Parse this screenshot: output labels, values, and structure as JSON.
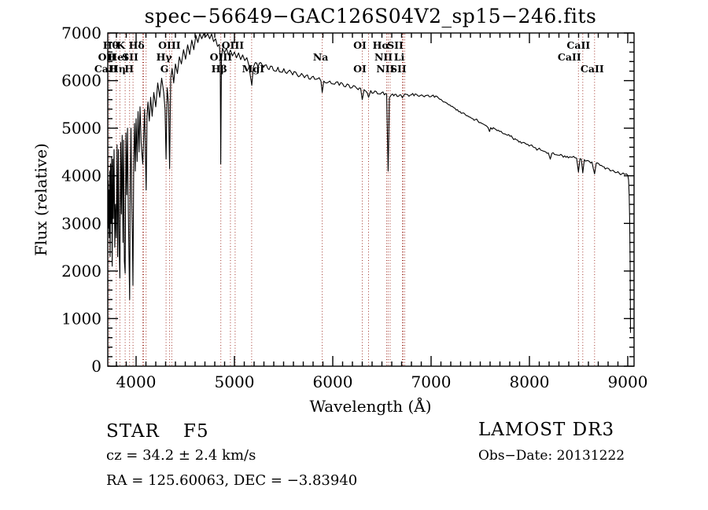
{
  "title": "spec−56649−GAC126S04V2_sp15−246.fits",
  "footer": {
    "class_type": "STAR",
    "subclass": "F5",
    "cz": "cz = 34.2 ± 2.4 km/s",
    "radec": "RA = 125.60063, DEC =  −3.83940",
    "survey": "LAMOST DR3",
    "obs_date": "Obs−Date: 20131222"
  },
  "chart_data": {
    "type": "line",
    "title": "spec−56649−GAC126S04V2_sp15−246.fits",
    "xlabel": "Wavelength (Å)",
    "ylabel": "Flux (relative)",
    "xlim": [
      3712,
      9064
    ],
    "ylim": [
      0,
      7000
    ],
    "x_ticks": [
      4000,
      5000,
      6000,
      7000,
      8000,
      9000
    ],
    "y_ticks": [
      0,
      1000,
      2000,
      3000,
      4000,
      5000,
      6000,
      7000
    ],
    "x_minor_step": 100,
    "y_minor_step": 200,
    "grid": false,
    "line_color": "#000000",
    "marked_line_color": "#a13228",
    "marked_lines": [
      3727,
      3798,
      3835,
      3889,
      3933.7,
      3968.5,
      4068,
      4076,
      4101.7,
      4305,
      4340.5,
      4363,
      4861.3,
      4958.9,
      5006.8,
      5175,
      5893,
      6300,
      6363.8,
      6548,
      6562.8,
      6583,
      6707.8,
      6716.4,
      6730.8,
      8498,
      8542,
      8662
    ],
    "line_labels": [
      {
        "text": "Hθ",
        "wavelength": 3798,
        "row": 0,
        "dx": -7
      },
      {
        "text": "K",
        "wavelength": 3933.7,
        "row": 0,
        "dx": -11
      },
      {
        "text": "Hδ",
        "wavelength": 4101.7,
        "row": 0,
        "dx": -12
      },
      {
        "text": "OIII",
        "wavelength": 4363,
        "row": 0,
        "dx": -3
      },
      {
        "text": "OIII",
        "wavelength": 5006.8,
        "row": 0,
        "dx": -3
      },
      {
        "text": "OI",
        "wavelength": 6300,
        "row": 0,
        "dx": -3
      },
      {
        "text": "Hα",
        "wavelength": 6562.8,
        "row": 0,
        "dx": -9
      },
      {
        "text": "SII",
        "wavelength": 6716.4,
        "row": 0,
        "dx": -10
      },
      {
        "text": "CaII",
        "wavelength": 8498,
        "row": 0,
        "dx": 0
      },
      {
        "text": "OII",
        "wavelength": 3727,
        "row": 1,
        "dx": -3
      },
      {
        "text": "HeI",
        "wavelength": 3889,
        "row": 1,
        "dx": -9
      },
      {
        "text": "SII",
        "wavelength": 4068,
        "row": 1,
        "dx": -16
      },
      {
        "text": "Hγ",
        "wavelength": 4340.5,
        "row": 1,
        "dx": -7
      },
      {
        "text": "OIII",
        "wavelength": 4958.9,
        "row": 1,
        "dx": -12
      },
      {
        "text": "Na",
        "wavelength": 5893,
        "row": 1,
        "dx": -2
      },
      {
        "text": "NII",
        "wavelength": 6548,
        "row": 1,
        "dx": -4
      },
      {
        "text": "Li",
        "wavelength": 6707.8,
        "row": 1,
        "dx": -4
      },
      {
        "text": "CaII",
        "wavelength": 8542,
        "row": 1,
        "dx": -17
      },
      {
        "text": "CaII",
        "wavelength": 3933.7,
        "row": 2,
        "dx": -30
      },
      {
        "text": "Hη",
        "wavelength": 3835,
        "row": 2,
        "dx": -3
      },
      {
        "text": "H",
        "wavelength": 3968.5,
        "row": 2,
        "dx": -5
      },
      {
        "text": "G",
        "wavelength": 4305,
        "row": 2,
        "dx": -2
      },
      {
        "text": "Hβ",
        "wavelength": 4861.3,
        "row": 2,
        "dx": -2
      },
      {
        "text": "MgI",
        "wavelength": 5175,
        "row": 2,
        "dx": 2
      },
      {
        "text": "OI",
        "wavelength": 6363.8,
        "row": 2,
        "dx": -11
      },
      {
        "text": "NII",
        "wavelength": 6583,
        "row": 2,
        "dx": -6
      },
      {
        "text": "SII",
        "wavelength": 6730.8,
        "row": 2,
        "dx": -8
      },
      {
        "text": "CaII",
        "wavelength": 8662,
        "row": 2,
        "dx": -3
      }
    ],
    "noise_regions": [
      {
        "from": 3712,
        "to": 4400,
        "amp": 150
      },
      {
        "from": 4400,
        "to": 5000,
        "amp": 90
      },
      {
        "from": 5000,
        "to": 5900,
        "amp": 45
      },
      {
        "from": 5900,
        "to": 6900,
        "amp": 40
      },
      {
        "from": 6900,
        "to": 8000,
        "amp": 30
      },
      {
        "from": 8000,
        "to": 9030,
        "amp": 35
      }
    ],
    "spectrum": [
      [
        3712,
        3000
      ],
      [
        3716,
        3900
      ],
      [
        3720,
        2900
      ],
      [
        3724,
        3700
      ],
      [
        3727,
        2700
      ],
      [
        3731,
        4100
      ],
      [
        3736,
        2300
      ],
      [
        3741,
        4250
      ],
      [
        3746,
        3000
      ],
      [
        3751,
        4400
      ],
      [
        3757,
        2100
      ],
      [
        3763,
        4350
      ],
      [
        3769,
        3100
      ],
      [
        3776,
        4550
      ],
      [
        3783,
        2500
      ],
      [
        3790,
        3400
      ],
      [
        3798,
        2700
      ],
      [
        3806,
        4650
      ],
      [
        3813,
        2300
      ],
      [
        3820,
        4550
      ],
      [
        3827,
        2600
      ],
      [
        3835,
        1850
      ],
      [
        3843,
        4700
      ],
      [
        3850,
        3200
      ],
      [
        3858,
        4850
      ],
      [
        3866,
        2600
      ],
      [
        3873,
        4750
      ],
      [
        3881,
        2200
      ],
      [
        3889,
        1950
      ],
      [
        3897,
        4900
      ],
      [
        3905,
        3600
      ],
      [
        3913,
        5000
      ],
      [
        3921,
        3300
      ],
      [
        3928,
        2300
      ],
      [
        3934,
        1400
      ],
      [
        3941,
        3900
      ],
      [
        3948,
        5000
      ],
      [
        3955,
        3500
      ],
      [
        3962,
        2700
      ],
      [
        3968,
        1700
      ],
      [
        3976,
        4300
      ],
      [
        3984,
        5100
      ],
      [
        3992,
        4100
      ],
      [
        4000,
        5200
      ],
      [
        4010,
        4300
      ],
      [
        4020,
        5350
      ],
      [
        4030,
        4500
      ],
      [
        4040,
        5450
      ],
      [
        4051,
        4700
      ],
      [
        4060,
        4450
      ],
      [
        4068,
        4250
      ],
      [
        4077,
        4800
      ],
      [
        4086,
        5400
      ],
      [
        4094,
        4500
      ],
      [
        4102,
        3700
      ],
      [
        4111,
        5250
      ],
      [
        4121,
        5550
      ],
      [
        4134,
        5150
      ],
      [
        4148,
        5650
      ],
      [
        4163,
        5250
      ],
      [
        4180,
        5750
      ],
      [
        4200,
        5450
      ],
      [
        4220,
        5950
      ],
      [
        4240,
        5650
      ],
      [
        4260,
        6050
      ],
      [
        4281,
        5750
      ],
      [
        4294,
        5400
      ],
      [
        4305,
        4350
      ],
      [
        4316,
        5850
      ],
      [
        4330,
        5500
      ],
      [
        4341,
        4150
      ],
      [
        4352,
        6050
      ],
      [
        4366,
        6250
      ],
      [
        4382,
        5950
      ],
      [
        4400,
        6350
      ],
      [
        4420,
        6150
      ],
      [
        4440,
        6500
      ],
      [
        4461,
        6350
      ],
      [
        4482,
        6650
      ],
      [
        4503,
        6450
      ],
      [
        4524,
        6750
      ],
      [
        4545,
        6550
      ],
      [
        4566,
        6850
      ],
      [
        4587,
        6650
      ],
      [
        4608,
        6950
      ],
      [
        4628,
        6800
      ],
      [
        4648,
        7020
      ],
      [
        4668,
        6880
      ],
      [
        4688,
        7060
      ],
      [
        4708,
        6920
      ],
      [
        4728,
        7040
      ],
      [
        4748,
        6880
      ],
      [
        4768,
        6980
      ],
      [
        4788,
        6820
      ],
      [
        4808,
        6880
      ],
      [
        4828,
        6720
      ],
      [
        4846,
        6760
      ],
      [
        4855,
        6500
      ],
      [
        4861,
        4250
      ],
      [
        4868,
        6450
      ],
      [
        4878,
        6680
      ],
      [
        4898,
        6580
      ],
      [
        4918,
        6680
      ],
      [
        4938,
        6540
      ],
      [
        4959,
        6640
      ],
      [
        4980,
        6520
      ],
      [
        5000,
        6600
      ],
      [
        5021,
        6480
      ],
      [
        5042,
        6580
      ],
      [
        5063,
        6440
      ],
      [
        5084,
        6540
      ],
      [
        5105,
        6420
      ],
      [
        5126,
        6480
      ],
      [
        5147,
        6320
      ],
      [
        5163,
        6080
      ],
      [
        5177,
        5900
      ],
      [
        5192,
        6280
      ],
      [
        5212,
        6380
      ],
      [
        5240,
        6280
      ],
      [
        5268,
        6380
      ],
      [
        5296,
        6280
      ],
      [
        5324,
        6330
      ],
      [
        5352,
        6230
      ],
      [
        5382,
        6300
      ],
      [
        5412,
        6200
      ],
      [
        5442,
        6280
      ],
      [
        5472,
        6180
      ],
      [
        5502,
        6250
      ],
      [
        5532,
        6150
      ],
      [
        5562,
        6220
      ],
      [
        5592,
        6120
      ],
      [
        5622,
        6180
      ],
      [
        5652,
        6080
      ],
      [
        5682,
        6150
      ],
      [
        5712,
        6060
      ],
      [
        5742,
        6120
      ],
      [
        5772,
        6030
      ],
      [
        5802,
        6090
      ],
      [
        5832,
        6030
      ],
      [
        5862,
        6060
      ],
      [
        5880,
        5990
      ],
      [
        5893,
        5750
      ],
      [
        5908,
        5990
      ],
      [
        5938,
        5950
      ],
      [
        5970,
        5990
      ],
      [
        6002,
        5930
      ],
      [
        6034,
        5970
      ],
      [
        6066,
        5900
      ],
      [
        6098,
        5940
      ],
      [
        6130,
        5870
      ],
      [
        6162,
        5910
      ],
      [
        6194,
        5850
      ],
      [
        6226,
        5880
      ],
      [
        6258,
        5810
      ],
      [
        6283,
        5840
      ],
      [
        6300,
        5600
      ],
      [
        6318,
        5810
      ],
      [
        6340,
        5770
      ],
      [
        6364,
        5650
      ],
      [
        6386,
        5790
      ],
      [
        6414,
        5740
      ],
      [
        6442,
        5770
      ],
      [
        6470,
        5720
      ],
      [
        6498,
        5750
      ],
      [
        6524,
        5700
      ],
      [
        6548,
        5720
      ],
      [
        6563,
        4100
      ],
      [
        6576,
        5640
      ],
      [
        6596,
        5700
      ],
      [
        6620,
        5680
      ],
      [
        6644,
        5710
      ],
      [
        6668,
        5670
      ],
      [
        6692,
        5700
      ],
      [
        6708,
        5640
      ],
      [
        6722,
        5690
      ],
      [
        6748,
        5710
      ],
      [
        6774,
        5670
      ],
      [
        6800,
        5700
      ],
      [
        6826,
        5680
      ],
      [
        6852,
        5710
      ],
      [
        6878,
        5670
      ],
      [
        6904,
        5700
      ],
      [
        6930,
        5660
      ],
      [
        6956,
        5690
      ],
      [
        6982,
        5660
      ],
      [
        7008,
        5680
      ],
      [
        7034,
        5650
      ],
      [
        7060,
        5670
      ],
      [
        7086,
        5610
      ],
      [
        7112,
        5580
      ],
      [
        7138,
        5550
      ],
      [
        7164,
        5520
      ],
      [
        7190,
        5490
      ],
      [
        7216,
        5460
      ],
      [
        7242,
        5420
      ],
      [
        7268,
        5390
      ],
      [
        7294,
        5350
      ],
      [
        7320,
        5320
      ],
      [
        7346,
        5290
      ],
      [
        7372,
        5260
      ],
      [
        7398,
        5230
      ],
      [
        7424,
        5200
      ],
      [
        7450,
        5180
      ],
      [
        7476,
        5150
      ],
      [
        7502,
        5120
      ],
      [
        7528,
        5090
      ],
      [
        7554,
        5060
      ],
      [
        7580,
        5010
      ],
      [
        7594,
        4930
      ],
      [
        7606,
        5010
      ],
      [
        7620,
        4980
      ],
      [
        7646,
        4990
      ],
      [
        7672,
        4950
      ],
      [
        7698,
        4930
      ],
      [
        7724,
        4900
      ],
      [
        7750,
        4880
      ],
      [
        7776,
        4850
      ],
      [
        7802,
        4830
      ],
      [
        7828,
        4800
      ],
      [
        7854,
        4780
      ],
      [
        7880,
        4750
      ],
      [
        7906,
        4720
      ],
      [
        7932,
        4700
      ],
      [
        7958,
        4680
      ],
      [
        7984,
        4660
      ],
      [
        8010,
        4640
      ],
      [
        8036,
        4610
      ],
      [
        8062,
        4590
      ],
      [
        8088,
        4560
      ],
      [
        8114,
        4540
      ],
      [
        8140,
        4520
      ],
      [
        8166,
        4500
      ],
      [
        8192,
        4480
      ],
      [
        8212,
        4350
      ],
      [
        8228,
        4470
      ],
      [
        8254,
        4450
      ],
      [
        8280,
        4440
      ],
      [
        8306,
        4430
      ],
      [
        8332,
        4430
      ],
      [
        8358,
        4420
      ],
      [
        8384,
        4410
      ],
      [
        8410,
        4400
      ],
      [
        8436,
        4390
      ],
      [
        8462,
        4380
      ],
      [
        8480,
        4370
      ],
      [
        8498,
        4080
      ],
      [
        8514,
        4360
      ],
      [
        8528,
        4350
      ],
      [
        8542,
        4060
      ],
      [
        8558,
        4340
      ],
      [
        8584,
        4320
      ],
      [
        8610,
        4300
      ],
      [
        8636,
        4290
      ],
      [
        8662,
        4040
      ],
      [
        8680,
        4270
      ],
      [
        8706,
        4250
      ],
      [
        8732,
        4220
      ],
      [
        8758,
        4190
      ],
      [
        8784,
        4160
      ],
      [
        8810,
        4140
      ],
      [
        8836,
        4110
      ],
      [
        8862,
        4090
      ],
      [
        8888,
        4070
      ],
      [
        8914,
        4050
      ],
      [
        8940,
        4040
      ],
      [
        8966,
        4030
      ],
      [
        8988,
        4040
      ],
      [
        9000,
        4010
      ],
      [
        9008,
        3920
      ],
      [
        9014,
        3600
      ],
      [
        9019,
        3100
      ],
      [
        9024,
        2200
      ],
      [
        9028,
        700
      ]
    ]
  }
}
